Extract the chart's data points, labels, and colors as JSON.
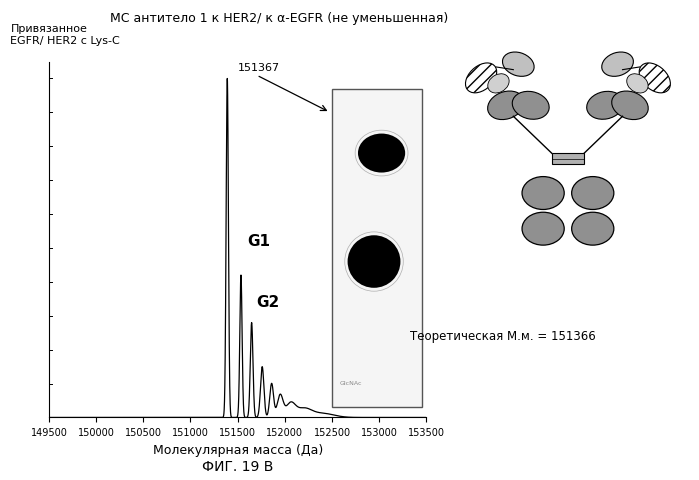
{
  "title": "МС антитело 1 к HER2/ к α-EGFR (не уменьшенная)",
  "ylabel_text": "Привязанное\nEGFR/ HER2 с Lys-C",
  "xlabel": "Молекулярная масса (Да)",
  "fig_label": "ФИГ. 19 В",
  "theoretical_mm": "Теоретическая М.м. = 151366",
  "peak_label": "151367",
  "g1_label": "G1",
  "g2_label": "G2",
  "xlim": [
    149500,
    153500
  ],
  "ylim": [
    0,
    1.05
  ],
  "background_color": "#ffffff",
  "line_color": "#000000"
}
